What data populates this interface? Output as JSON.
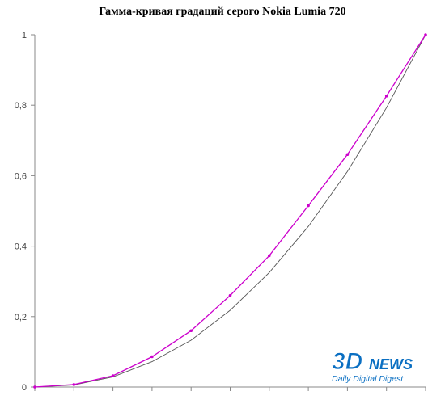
{
  "chart_data": {
    "type": "line",
    "title": "Гамма-кривая градаций серого Nokia Lumia 720",
    "xlabel": "",
    "ylabel": "",
    "ylim": [
      0,
      1
    ],
    "y_ticks": [
      "0",
      "0,2",
      "0,4",
      "0,6",
      "0,8",
      "1"
    ],
    "x": [
      0,
      0.1,
      0.2,
      0.3,
      0.4,
      0.5,
      0.6,
      0.7,
      0.8,
      0.9,
      1.0
    ],
    "series": [
      {
        "color": "#cc00cc",
        "marker": "dot",
        "values": [
          0,
          0.007,
          0.032,
          0.086,
          0.16,
          0.26,
          0.373,
          0.515,
          0.66,
          0.826,
          1.0
        ]
      },
      {
        "color": "#555555",
        "marker": "none",
        "values": [
          0,
          0.006,
          0.029,
          0.072,
          0.133,
          0.218,
          0.325,
          0.456,
          0.612,
          0.793,
          1.0
        ]
      }
    ],
    "grid": false
  },
  "watermark": {
    "logo_3d": "3D",
    "logo_news": "NEWS",
    "tagline": "Daily Digital Digest",
    "color_3d": "#0a6fc2",
    "color_news": "#0a6fc2"
  }
}
